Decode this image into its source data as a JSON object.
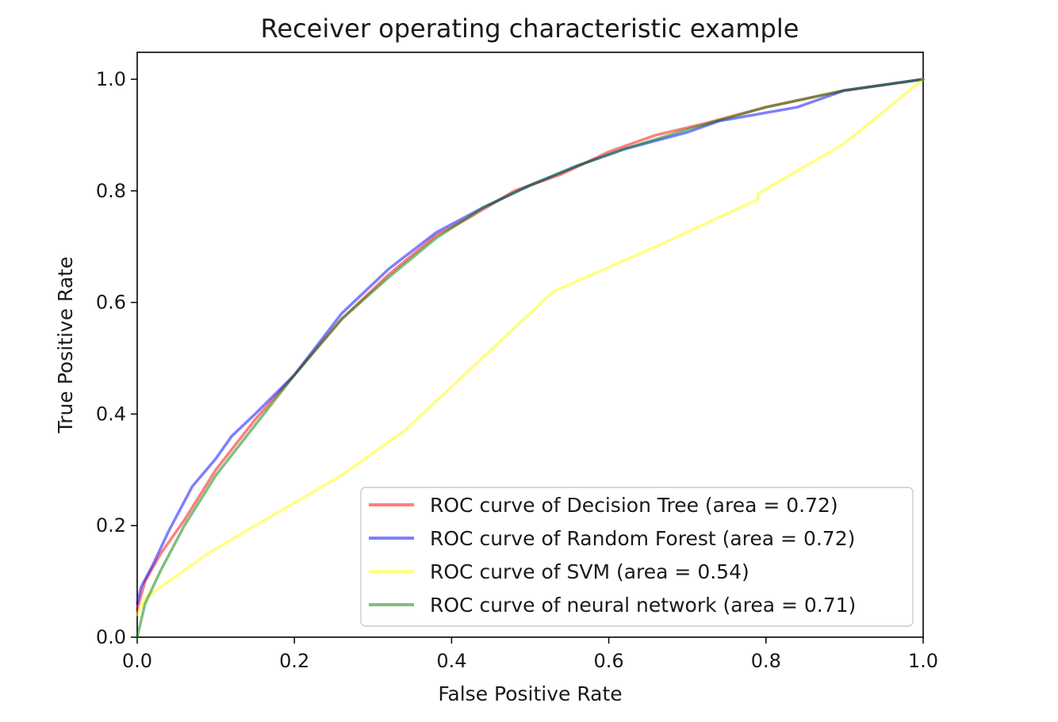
{
  "chart_data": {
    "type": "line",
    "title": "Receiver operating characteristic example",
    "xlabel": "False Positive Rate",
    "ylabel": "True Positive Rate",
    "xlim": [
      0.0,
      1.0
    ],
    "ylim": [
      0.0,
      1.05
    ],
    "x_ticks": [
      "0.0",
      "0.2",
      "0.4",
      "0.6",
      "0.8",
      "1.0"
    ],
    "y_ticks": [
      "0.0",
      "0.2",
      "0.4",
      "0.6",
      "0.8",
      "1.0"
    ],
    "grid": false,
    "legend_position": "lower-right",
    "series": [
      {
        "name": "ROC curve of Decision Tree (area = 0.72)",
        "color": "#ff0000",
        "x": [
          0.0,
          0.01,
          0.03,
          0.06,
          0.1,
          0.15,
          0.2,
          0.26,
          0.32,
          0.38,
          0.42,
          0.48,
          0.54,
          0.6,
          0.66,
          0.72,
          0.8,
          0.9,
          1.0
        ],
        "y": [
          0.05,
          0.1,
          0.15,
          0.21,
          0.3,
          0.39,
          0.47,
          0.57,
          0.65,
          0.72,
          0.75,
          0.8,
          0.83,
          0.87,
          0.9,
          0.92,
          0.95,
          0.98,
          1.0
        ]
      },
      {
        "name": "ROC curve of Random Forest (area = 0.72)",
        "color": "#0000ff",
        "x": [
          0.0,
          0.005,
          0.02,
          0.04,
          0.07,
          0.1,
          0.12,
          0.15,
          0.2,
          0.26,
          0.32,
          0.38,
          0.44,
          0.5,
          0.56,
          0.62,
          0.7,
          0.74,
          0.84,
          0.9,
          1.0
        ],
        "y": [
          0.06,
          0.09,
          0.13,
          0.19,
          0.27,
          0.32,
          0.36,
          0.4,
          0.47,
          0.58,
          0.66,
          0.725,
          0.77,
          0.81,
          0.845,
          0.875,
          0.905,
          0.925,
          0.95,
          0.98,
          1.0
        ]
      },
      {
        "name": "ROC curve of SVM (area = 0.54)",
        "color": "#ffff00",
        "x": [
          0.0,
          0.01,
          0.05,
          0.09,
          0.15,
          0.26,
          0.33,
          0.34,
          0.53,
          0.66,
          0.79,
          0.79,
          0.9,
          1.0
        ],
        "y": [
          0.04,
          0.07,
          0.11,
          0.15,
          0.2,
          0.29,
          0.36,
          0.37,
          0.62,
          0.7,
          0.785,
          0.795,
          0.885,
          1.0
        ]
      },
      {
        "name": "ROC curve of neural network (area = 0.71)",
        "color": "#008000",
        "x": [
          0.0,
          0.005,
          0.01,
          0.03,
          0.06,
          0.1,
          0.15,
          0.2,
          0.26,
          0.32,
          0.38,
          0.44,
          0.5,
          0.56,
          0.62,
          0.7,
          0.8,
          0.9,
          1.0
        ],
        "y": [
          0.0,
          0.03,
          0.06,
          0.12,
          0.2,
          0.29,
          0.38,
          0.47,
          0.57,
          0.645,
          0.715,
          0.77,
          0.81,
          0.845,
          0.875,
          0.91,
          0.95,
          0.98,
          1.0
        ]
      }
    ]
  }
}
